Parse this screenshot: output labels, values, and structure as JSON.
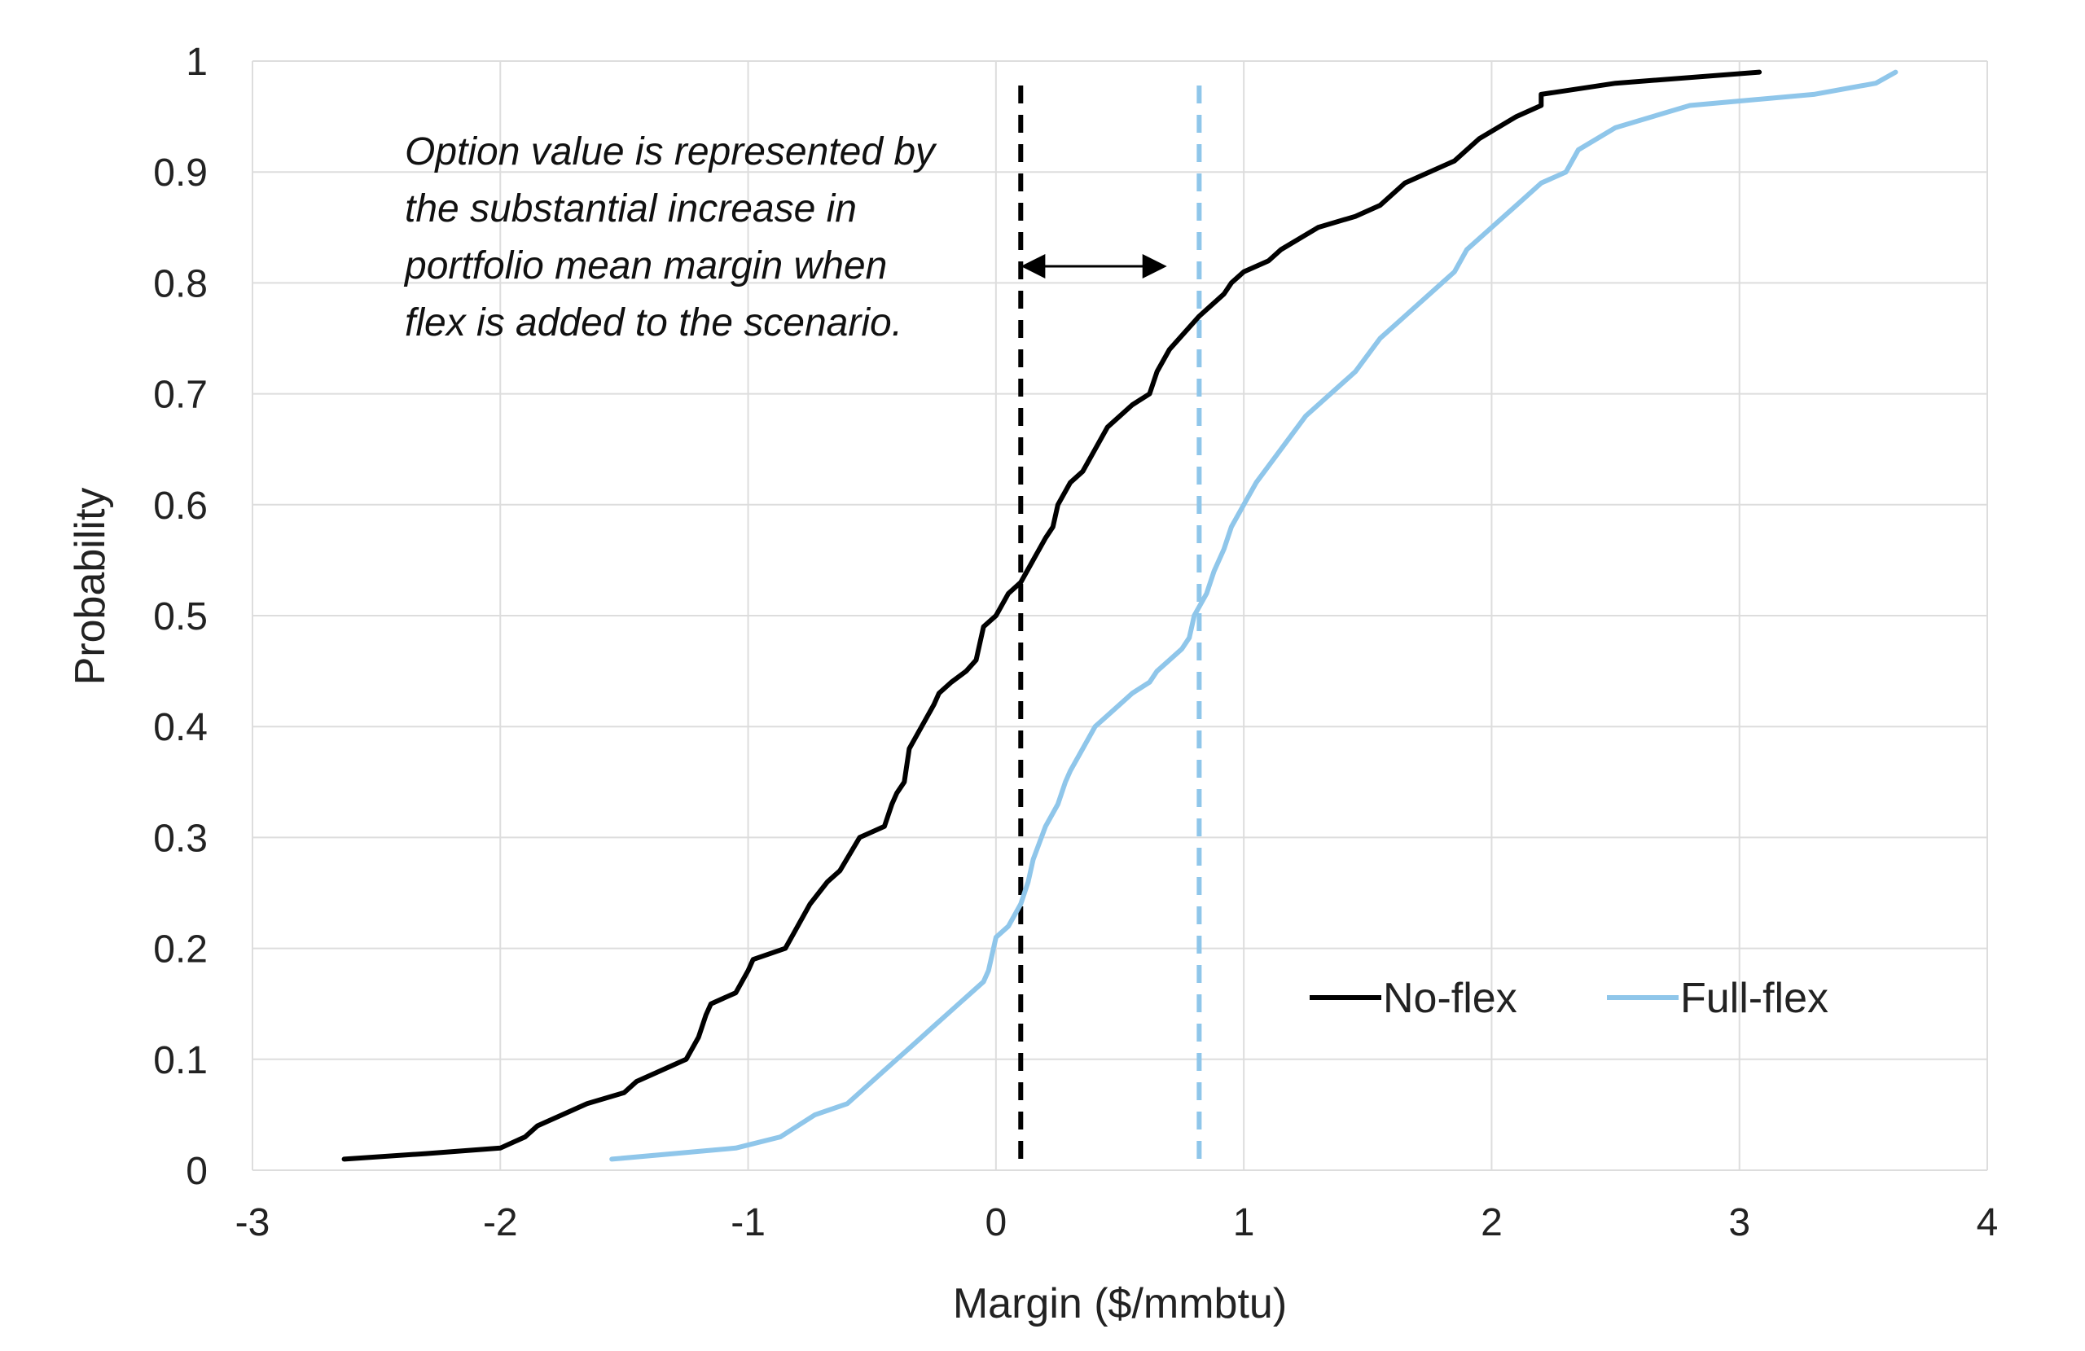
{
  "chart_data": {
    "type": "line",
    "title": "",
    "xlabel": "Margin ($/mmbtu)",
    "ylabel": "Probability",
    "xlim": [
      -3,
      4
    ],
    "ylim": [
      0,
      1
    ],
    "xticks": [
      "-3",
      "-2",
      "-1",
      "0",
      "1",
      "2",
      "3",
      "4"
    ],
    "yticks": [
      "0",
      "0.1",
      "0.2",
      "0.3",
      "0.4",
      "0.5",
      "0.6",
      "0.7",
      "0.8",
      "0.9",
      "1"
    ],
    "grid": true,
    "legend": "bottom-right inside plot",
    "series": [
      {
        "name": "No-flex",
        "color": "#000000",
        "x": [
          -2.63,
          -2.3,
          -2.0,
          -1.9,
          -1.85,
          -1.75,
          -1.65,
          -1.5,
          -1.45,
          -1.35,
          -1.25,
          -1.2,
          -1.17,
          -1.15,
          -1.05,
          -1.0,
          -0.98,
          -0.85,
          -0.8,
          -0.75,
          -0.68,
          -0.63,
          -0.55,
          -0.45,
          -0.42,
          -0.4,
          -0.37,
          -0.35,
          -0.3,
          -0.25,
          -0.23,
          -0.18,
          -0.12,
          -0.08,
          -0.05,
          0.0,
          0.05,
          0.1,
          0.15,
          0.2,
          0.23,
          0.25,
          0.3,
          0.35,
          0.4,
          0.45,
          0.55,
          0.62,
          0.65,
          0.7,
          0.82,
          0.92,
          0.95,
          1.0,
          1.1,
          1.15,
          1.3,
          1.45,
          1.55,
          1.65,
          1.85,
          1.95,
          2.1,
          2.2,
          2.2,
          2.5,
          3.08
        ],
        "y": [
          0.01,
          0.015,
          0.02,
          0.03,
          0.04,
          0.05,
          0.06,
          0.07,
          0.08,
          0.09,
          0.1,
          0.12,
          0.14,
          0.15,
          0.16,
          0.18,
          0.19,
          0.2,
          0.22,
          0.24,
          0.26,
          0.27,
          0.3,
          0.31,
          0.33,
          0.34,
          0.35,
          0.38,
          0.4,
          0.42,
          0.43,
          0.44,
          0.45,
          0.46,
          0.49,
          0.5,
          0.52,
          0.53,
          0.55,
          0.57,
          0.58,
          0.6,
          0.62,
          0.63,
          0.65,
          0.67,
          0.69,
          0.7,
          0.72,
          0.74,
          0.77,
          0.79,
          0.8,
          0.81,
          0.82,
          0.83,
          0.85,
          0.86,
          0.87,
          0.89,
          0.91,
          0.93,
          0.95,
          0.96,
          0.97,
          0.98,
          0.99
        ]
      },
      {
        "name": "Full-flex",
        "color": "#8fc6ea",
        "x": [
          -1.55,
          -1.05,
          -0.87,
          -0.8,
          -0.73,
          -0.6,
          -0.55,
          -0.45,
          -0.4,
          -0.35,
          -0.3,
          -0.25,
          -0.2,
          -0.15,
          -0.1,
          -0.05,
          -0.03,
          0.0,
          0.05,
          0.1,
          0.13,
          0.15,
          0.2,
          0.25,
          0.28,
          0.3,
          0.35,
          0.4,
          0.45,
          0.5,
          0.55,
          0.62,
          0.65,
          0.7,
          0.75,
          0.78,
          0.8,
          0.85,
          0.88,
          0.92,
          0.95,
          1.0,
          1.05,
          1.15,
          1.25,
          1.35,
          1.45,
          1.55,
          1.65,
          1.75,
          1.8,
          1.85,
          1.9,
          2.0,
          2.1,
          2.2,
          2.3,
          2.35,
          2.5,
          2.8,
          3.3,
          3.55,
          3.63
        ],
        "y": [
          0.01,
          0.02,
          0.03,
          0.04,
          0.05,
          0.06,
          0.07,
          0.09,
          0.1,
          0.11,
          0.12,
          0.13,
          0.14,
          0.15,
          0.16,
          0.17,
          0.18,
          0.21,
          0.22,
          0.24,
          0.26,
          0.28,
          0.31,
          0.33,
          0.35,
          0.36,
          0.38,
          0.4,
          0.41,
          0.42,
          0.43,
          0.44,
          0.45,
          0.46,
          0.47,
          0.48,
          0.5,
          0.52,
          0.54,
          0.56,
          0.58,
          0.6,
          0.62,
          0.65,
          0.68,
          0.7,
          0.72,
          0.75,
          0.77,
          0.79,
          0.8,
          0.81,
          0.83,
          0.85,
          0.87,
          0.89,
          0.9,
          0.92,
          0.94,
          0.96,
          0.97,
          0.98,
          0.99
        ]
      }
    ],
    "reference_lines": [
      {
        "x": 0.1,
        "color": "#000000",
        "style": "dashed"
      },
      {
        "x": 0.82,
        "color": "#8fc6ea",
        "style": "dashed"
      }
    ],
    "double_arrow": {
      "x_from": 0.12,
      "x_to": 0.67,
      "y": 0.815
    },
    "annotation": [
      "Option value is represented by",
      "the substantial increase in",
      "portfolio mean margin when",
      "flex is added to the scenario."
    ]
  }
}
